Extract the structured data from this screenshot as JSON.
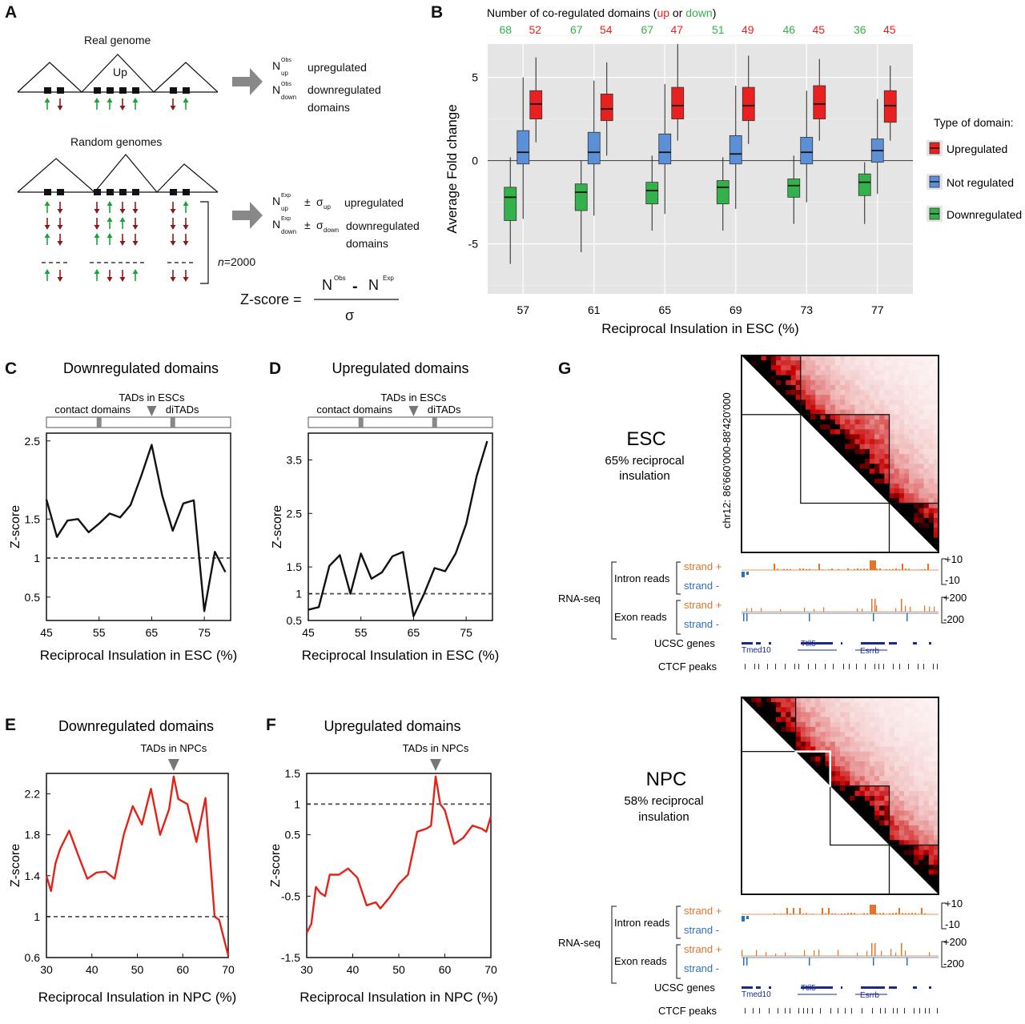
{
  "figure": {
    "panel_labels": [
      "A",
      "B",
      "C",
      "D",
      "E",
      "F",
      "G"
    ],
    "colors": {
      "up": "#e8201f",
      "up_dark": "#a01010",
      "not": "#5b8fd6",
      "down": "#33b14a",
      "arrow_green": "#1aa33a",
      "arrow_red": "#8b1a1a",
      "panel_bg": "#e5e5e5",
      "red_line": "#e2231a",
      "orange": "#e3742a",
      "blue": "#2e6fbe",
      "gene_blue": "#1b2a8a"
    }
  },
  "panel_a": {
    "real_genome": "Real genome",
    "up_tag": "Up",
    "n_obs_up": "N",
    "n_obs_up_sup": "Obs",
    "n_obs_up_sub": "up",
    "obs_up_label": "upregulated",
    "n_obs_down": "N",
    "n_obs_down_sup": "Obs",
    "n_obs_down_sub": "down",
    "obs_down_label": "downregulated",
    "obs_domains": "domains",
    "random_genomes": "Random genomes",
    "n_exp_up": "N",
    "n_exp_sup": "Exp",
    "n_exp_up_sub": "up",
    "pm": "±",
    "sigma": "σ",
    "sigma_up_sub": "up",
    "exp_up_label": "upregulated",
    "n_exp_down_sub": "down",
    "sigma_down_sub": "down",
    "exp_down_label": "downregulated",
    "exp_domains": "domains",
    "n_label": "n",
    "n_value": "=2000",
    "z_lhs": "Z-score =",
    "z_num_a": "N",
    "z_num_a_sup": "Obs",
    "z_minus": "-",
    "z_num_b": "N",
    "z_num_b_sup": "Exp",
    "z_den": "σ"
  },
  "chart_data": [
    {
      "id": "B",
      "type": "box",
      "title": "Number of co-regulated domains (up or down)",
      "title_parts": [
        "Number of co-regulated domains (",
        "up",
        " or ",
        "down",
        ")"
      ],
      "xlabel": "Reciprocal Insulation in ESC (%)",
      "ylabel": "Average Fold change",
      "ylim": [
        -8,
        7
      ],
      "yticks": [
        5,
        0,
        -5
      ],
      "categories": [
        "57",
        "61",
        "65",
        "69",
        "73",
        "77"
      ],
      "counts": [
        {
          "down": "68",
          "up": "52"
        },
        {
          "down": "67",
          "up": "54"
        },
        {
          "down": "67",
          "up": "47"
        },
        {
          "down": "51",
          "up": "49"
        },
        {
          "down": "46",
          "up": "45"
        },
        {
          "down": "36",
          "up": "45"
        }
      ],
      "legend_title": "Type of domain:",
      "legend": [
        "Upregulated",
        "Not regulated",
        "Downregulated"
      ],
      "series": [
        {
          "name": "Downregulated",
          "boxes": [
            {
              "min": -6.2,
              "q1": -3.6,
              "median": -2.2,
              "q3": -1.6,
              "max": 0.2
            },
            {
              "min": -5.5,
              "q1": -3.0,
              "median": -1.9,
              "q3": -1.4,
              "max": 0.0
            },
            {
              "min": -4.2,
              "q1": -2.6,
              "median": -1.8,
              "q3": -1.3,
              "max": 0.3
            },
            {
              "min": -4.2,
              "q1": -2.6,
              "median": -1.6,
              "q3": -1.2,
              "max": 0.2
            },
            {
              "min": -3.8,
              "q1": -2.2,
              "median": -1.5,
              "q3": -1.1,
              "max": 0.3
            },
            {
              "min": -3.8,
              "q1": -2.1,
              "median": -1.3,
              "q3": -0.8,
              "max": -0.1
            }
          ]
        },
        {
          "name": "Not regulated",
          "boxes": [
            {
              "min": -3.5,
              "q1": -0.2,
              "median": 0.5,
              "q3": 1.8,
              "max": 5.0
            },
            {
              "min": -3.3,
              "q1": -0.2,
              "median": 0.5,
              "q3": 1.7,
              "max": 4.8
            },
            {
              "min": -3.2,
              "q1": -0.2,
              "median": 0.5,
              "q3": 1.6,
              "max": 4.6
            },
            {
              "min": -2.9,
              "q1": -0.2,
              "median": 0.4,
              "q3": 1.5,
              "max": 4.5
            },
            {
              "min": -2.5,
              "q1": -0.2,
              "median": 0.5,
              "q3": 1.4,
              "max": 4.2
            },
            {
              "min": -2.0,
              "q1": -0.1,
              "median": 0.6,
              "q3": 1.3,
              "max": 3.7
            }
          ]
        },
        {
          "name": "Upregulated",
          "boxes": [
            {
              "min": 1.1,
              "q1": 2.5,
              "median": 3.4,
              "q3": 4.2,
              "max": 6.2
            },
            {
              "min": 0.3,
              "q1": 2.4,
              "median": 3.1,
              "q3": 4.0,
              "max": 5.9
            },
            {
              "min": 1.2,
              "q1": 2.5,
              "median": 3.3,
              "q3": 4.4,
              "max": 7.0
            },
            {
              "min": 1.0,
              "q1": 2.4,
              "median": 3.3,
              "q3": 4.4,
              "max": 6.3
            },
            {
              "min": 1.2,
              "q1": 2.5,
              "median": 3.4,
              "q3": 4.5,
              "max": 6.1
            },
            {
              "min": 1.2,
              "q1": 2.3,
              "median": 3.3,
              "q3": 4.2,
              "max": 5.7
            }
          ]
        }
      ]
    },
    {
      "id": "C",
      "type": "line",
      "title": "Downregulated domains",
      "xlabel": "Reciprocal Insulation in ESC (%)",
      "ylabel": "Z-score",
      "xlim": [
        45,
        80
      ],
      "ylim": [
        0.2,
        2.6
      ],
      "xticks": [
        "45",
        "55",
        "65",
        "75"
      ],
      "yticks": [
        "0.5",
        "1",
        "1.5",
        "2.5"
      ],
      "ytick_values": [
        0.5,
        1,
        1.5,
        2.5
      ],
      "reference_line": 1,
      "bar_labels": {
        "contact": "contact domains",
        "tads": "TADs in ESCs",
        "ditads": "diTADs"
      },
      "bar_marks": {
        "contact": 55,
        "tads": 65,
        "ditads": 69
      },
      "x": [
        45,
        47,
        49,
        51,
        53,
        55,
        57,
        59,
        61,
        63,
        65,
        67,
        69,
        71,
        73,
        75,
        77,
        79
      ],
      "values": [
        1.75,
        1.27,
        1.48,
        1.5,
        1.33,
        1.44,
        1.57,
        1.52,
        1.68,
        2.05,
        2.45,
        1.8,
        1.35,
        1.7,
        1.74,
        0.32,
        1.08,
        0.82
      ]
    },
    {
      "id": "D",
      "type": "line",
      "title": "Upregulated domains",
      "xlabel": "Reciprocal Insulation in ESC (%)",
      "ylabel": "Z-score",
      "xlim": [
        45,
        80
      ],
      "ylim": [
        0.5,
        4.0
      ],
      "xticks": [
        "45",
        "55",
        "65",
        "75"
      ],
      "yticks": [
        "0.5",
        "1",
        "1.5",
        "2.5",
        "3.5"
      ],
      "ytick_values": [
        0.5,
        1,
        1.5,
        2.5,
        3.5
      ],
      "reference_line": 1,
      "bar_labels": {
        "contact": "contact domains",
        "tads": "TADs in ESCs",
        "ditads": "diTADs"
      },
      "bar_marks": {
        "contact": 55,
        "tads": 65,
        "ditads": 69
      },
      "x": [
        45,
        47,
        49,
        51,
        53,
        55,
        57,
        59,
        61,
        63,
        65,
        67,
        69,
        71,
        73,
        75,
        77,
        79
      ],
      "values": [
        0.7,
        0.75,
        1.52,
        1.72,
        1.0,
        1.75,
        1.28,
        1.4,
        1.7,
        1.78,
        0.58,
        1.0,
        1.48,
        1.42,
        1.75,
        2.3,
        3.2,
        3.85
      ]
    },
    {
      "id": "E",
      "type": "line",
      "title": "Downregulated domains",
      "xlabel": "Reciprocal Insulation in NPC (%)",
      "ylabel": "Z-score",
      "xlim": [
        30,
        70
      ],
      "ylim": [
        0.6,
        2.4
      ],
      "xticks": [
        "30",
        "40",
        "50",
        "60",
        "70"
      ],
      "yticks": [
        "0.6",
        "1",
        "1.4",
        "1.8",
        "2.2"
      ],
      "ytick_values": [
        0.6,
        1,
        1.4,
        1.8,
        2.2
      ],
      "reference_line": 1,
      "marker_label": "TADs in NPCs",
      "marker_x": 58,
      "x": [
        30,
        31,
        32,
        33,
        35,
        37,
        39,
        41,
        43,
        45,
        47,
        49,
        51,
        53,
        55,
        57,
        58,
        59,
        61,
        63,
        65,
        67,
        68,
        70
      ],
      "values": [
        1.4,
        1.25,
        1.52,
        1.66,
        1.84,
        1.6,
        1.37,
        1.43,
        1.44,
        1.37,
        1.8,
        2.08,
        1.9,
        2.25,
        1.8,
        2.05,
        2.37,
        2.15,
        2.1,
        1.73,
        2.16,
        1.0,
        0.97,
        0.62
      ]
    },
    {
      "id": "F",
      "type": "line",
      "title": "Upregulated domains",
      "xlabel": "Reciprocal Insulation in NPC (%)",
      "ylabel": "Z-score",
      "xlim": [
        30,
        70
      ],
      "ylim": [
        -1.5,
        1.5
      ],
      "xticks": [
        "30",
        "40",
        "50",
        "60",
        "70"
      ],
      "yticks": [
        "-1.5",
        "-0.5",
        "0.5",
        "1",
        "1.5"
      ],
      "ytick_values": [
        -1.5,
        -0.5,
        0.5,
        1,
        1.5
      ],
      "reference_line": 1,
      "marker_label": "TADs in NPCs",
      "marker_x": 58,
      "x": [
        30,
        31,
        32,
        33,
        34,
        35,
        37,
        39,
        41,
        43,
        45,
        46,
        48,
        50,
        52,
        54,
        56,
        57,
        58,
        59,
        60,
        62,
        64,
        66,
        68,
        69,
        70
      ],
      "values": [
        -1.1,
        -0.95,
        -0.35,
        -0.45,
        -0.5,
        -0.15,
        -0.15,
        -0.05,
        -0.2,
        -0.65,
        -0.6,
        -0.7,
        -0.52,
        -0.3,
        -0.15,
        0.55,
        0.6,
        0.65,
        1.45,
        1.0,
        0.9,
        0.35,
        0.45,
        0.65,
        0.6,
        0.55,
        0.8
      ]
    }
  ],
  "panel_g": {
    "esc": {
      "title": "ESC",
      "subtitle_line1": "65% reciprocal",
      "subtitle_line2": "insulation",
      "coord": "chr12: 86'660'000-88'420'000",
      "rnaseq": "RNA-seq",
      "intron": "Intron reads",
      "exon": "Exon reads",
      "strand_plus": "strand +",
      "strand_minus": "strand -",
      "intron_scale_top": "+10",
      "intron_scale_bottom": "-10",
      "exon_scale_top": "+200",
      "exon_scale_bottom": "-200",
      "ucsc": "UCSC genes",
      "ctcf": "CTCF peaks",
      "genes": [
        "Tmed10",
        "Ttll5",
        "Esrrb"
      ]
    },
    "npc": {
      "title": "NPC",
      "subtitle_line1": "58% reciprocal",
      "subtitle_line2": "insulation",
      "rnaseq": "RNA-seq",
      "intron": "Intron reads",
      "exon": "Exon reads",
      "strand_plus": "strand +",
      "strand_minus": "strand -",
      "intron_scale_top": "+10",
      "intron_scale_bottom": "-10",
      "exon_scale_top": "+200",
      "exon_scale_bottom": "-200",
      "ucsc": "UCSC genes",
      "ctcf": "CTCF peaks",
      "genes": [
        "Tmed10",
        "Ttll5",
        "Esrrb"
      ]
    }
  }
}
